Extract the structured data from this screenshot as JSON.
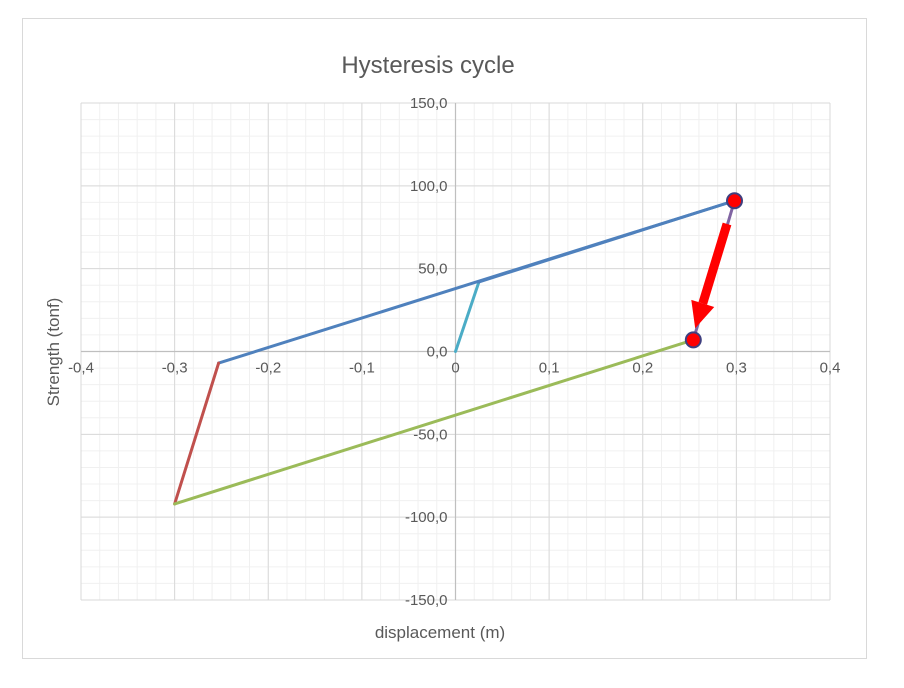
{
  "chart_data": {
    "type": "line",
    "title": "Hysteresis cycle",
    "xlabel": "displacement (m)",
    "ylabel": "Strength (tonf)",
    "xlim": [
      -0.4,
      0.4
    ],
    "ylim": [
      -150,
      150
    ],
    "x_ticks": [
      "-0,4",
      "-0,3",
      "-0,2",
      "-0,1",
      "0",
      "0,1",
      "0,2",
      "0,3",
      "0,4"
    ],
    "y_ticks": [
      "150,0",
      "100,0",
      "50,0",
      "0,0",
      "-50,0",
      "-100,0",
      "-150,0"
    ],
    "x_tick_values": [
      -0.4,
      -0.3,
      -0.2,
      -0.1,
      0,
      0.1,
      0.2,
      0.3,
      0.4
    ],
    "y_tick_values": [
      150,
      100,
      50,
      0,
      -50,
      -100,
      -150
    ],
    "grid": true,
    "series": [
      {
        "color": "#4bacc6",
        "points": [
          [
            0,
            0
          ],
          [
            0.025,
            42
          ]
        ]
      },
      {
        "color": "#4f81bd",
        "points": [
          [
            0.025,
            42
          ],
          [
            0.298,
            91
          ]
        ]
      },
      {
        "color": "#8064a2",
        "points": [
          [
            0.298,
            91
          ],
          [
            0.254,
            7
          ]
        ]
      },
      {
        "color": "#4f81bd",
        "points": [
          [
            0.298,
            91
          ],
          [
            -0.253,
            -7
          ]
        ]
      },
      {
        "color": "#c0504d",
        "points": [
          [
            -0.253,
            -7
          ],
          [
            -0.3,
            -92
          ]
        ]
      },
      {
        "color": "#9bbb59",
        "points": [
          [
            -0.3,
            -92
          ],
          [
            0.254,
            7
          ]
        ]
      }
    ],
    "markers": [
      {
        "x": 0.298,
        "y": 91,
        "color": "#ff0000"
      },
      {
        "x": 0.254,
        "y": 7,
        "color": "#ff0000"
      }
    ],
    "annotation_arrow": {
      "from": [
        0.29,
        77
      ],
      "to": [
        0.256,
        14
      ],
      "color": "#ff0000"
    }
  }
}
